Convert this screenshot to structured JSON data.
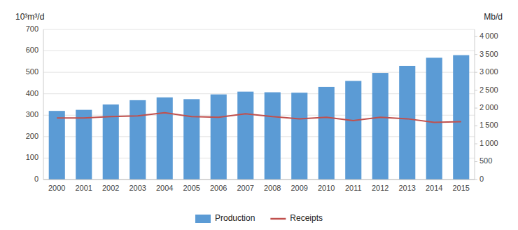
{
  "chart_data": {
    "type": "bar",
    "ylabel": "10³m³/d",
    "y2label": "Mb/d",
    "categories": [
      "2000",
      "2001",
      "2002",
      "2003",
      "2004",
      "2005",
      "2006",
      "2007",
      "2008",
      "2009",
      "2010",
      "2011",
      "2012",
      "2013",
      "2014",
      "2015"
    ],
    "series": [
      {
        "name": "Production",
        "type": "bar",
        "color": "#5b9bd5",
        "values": [
          320,
          325,
          350,
          370,
          383,
          375,
          397,
          410,
          407,
          405,
          432,
          460,
          497,
          530,
          568,
          580
        ]
      },
      {
        "name": "Receipts",
        "type": "line",
        "axis": "y2",
        "color": "#c0504d",
        "values": [
          1720,
          1720,
          1760,
          1780,
          1870,
          1760,
          1740,
          1840,
          1760,
          1700,
          1740,
          1650,
          1740,
          1700,
          1600,
          1620
        ]
      }
    ],
    "ylim": [
      0,
      700
    ],
    "yticks": [
      0,
      100,
      200,
      300,
      400,
      500,
      600,
      700
    ],
    "y2lim": [
      0,
      4200
    ],
    "y2ticks": [
      0,
      500,
      {
        "value": 1000,
        "label": "1 000"
      },
      {
        "value": 1500,
        "label": "1 500"
      },
      {
        "value": 2000,
        "label": "2 000"
      },
      {
        "value": 2500,
        "label": "2 500"
      },
      {
        "value": 3000,
        "label": "3 000"
      },
      {
        "value": 3500,
        "label": "3 500"
      },
      {
        "value": 4000,
        "label": "4 000"
      }
    ],
    "grid": true,
    "legend": "bottom"
  }
}
